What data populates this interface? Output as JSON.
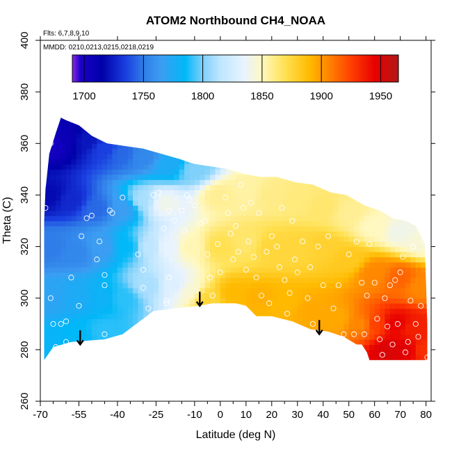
{
  "chart_data": {
    "type": "heatmap",
    "title": "ATOM2 Northbound CH4_NOAA",
    "flights_note": "Flts: 6,7,8,9,10",
    "dates_note": "MMDD: 0210,0213,0215,0218,0219",
    "xlabel": "Latitude (deg N)",
    "ylabel": "Theta (C)",
    "xlim": [
      -70,
      82
    ],
    "ylim": [
      260,
      400
    ],
    "x_ticks": [
      -70,
      -55,
      -40,
      -25,
      -10,
      0,
      10,
      20,
      30,
      40,
      50,
      60,
      70,
      80
    ],
    "x_tick_labels": [
      "-70",
      "-55",
      "-40",
      "-25",
      "-10",
      "0",
      "10",
      "20",
      "30",
      "40",
      "50",
      "60",
      "70",
      "80"
    ],
    "x_minor_ticks": [
      -65,
      -60,
      -50,
      -45,
      -35,
      -30,
      -20,
      -15,
      -5,
      5,
      15,
      25,
      35,
      45,
      55,
      65,
      75
    ],
    "y_ticks": [
      260,
      280,
      300,
      320,
      340,
      360,
      380,
      400
    ],
    "y_tick_labels": [
      "260",
      "280",
      "300",
      "320",
      "340",
      "360",
      "380",
      "400"
    ],
    "colorbar": {
      "range": [
        1690,
        1965
      ],
      "ticks": [
        1700,
        1750,
        1800,
        1850,
        1900,
        1950
      ],
      "tick_labels": [
        "1700",
        "1750",
        "1800",
        "1850",
        "1900",
        "1950"
      ],
      "stops": [
        {
          "v": 1690,
          "c": "#8a2be2"
        },
        {
          "v": 1697,
          "c": "#1a00c8"
        },
        {
          "v": 1715,
          "c": "#0000a8"
        },
        {
          "v": 1735,
          "c": "#1a3fe0"
        },
        {
          "v": 1750,
          "c": "#2f7de8"
        },
        {
          "v": 1765,
          "c": "#3c9df2"
        },
        {
          "v": 1785,
          "c": "#00b8f8"
        },
        {
          "v": 1800,
          "c": "#7fd0fa"
        },
        {
          "v": 1815,
          "c": "#bfe6ff"
        },
        {
          "v": 1835,
          "c": "#e8f3ff"
        },
        {
          "v": 1850,
          "c": "#fff8c0"
        },
        {
          "v": 1870,
          "c": "#ffe050"
        },
        {
          "v": 1890,
          "c": "#ffba00"
        },
        {
          "v": 1905,
          "c": "#ff8800"
        },
        {
          "v": 1925,
          "c": "#ff4000"
        },
        {
          "v": 1945,
          "c": "#e80000"
        },
        {
          "v": 1965,
          "c": "#b01818"
        }
      ]
    },
    "boundary": {
      "lower": [
        [
          -68.5,
          276
        ],
        [
          -65,
          281
        ],
        [
          -58,
          283
        ],
        [
          -45,
          284
        ],
        [
          -38,
          286
        ],
        [
          -30,
          292
        ],
        [
          -26,
          295
        ],
        [
          -18,
          296
        ],
        [
          -8,
          297
        ],
        [
          -3,
          298
        ],
        [
          0,
          298
        ],
        [
          6,
          298
        ],
        [
          10,
          297
        ],
        [
          14,
          293
        ],
        [
          20,
          293
        ],
        [
          28,
          291
        ],
        [
          35,
          288
        ],
        [
          42,
          287
        ],
        [
          48,
          285
        ],
        [
          53,
          282
        ],
        [
          55,
          282
        ],
        [
          57,
          279
        ],
        [
          58,
          276
        ],
        [
          80.5,
          276
        ]
      ],
      "upper": [
        [
          80.5,
          290
        ],
        [
          79.5,
          321
        ],
        [
          78,
          324
        ],
        [
          76,
          328
        ],
        [
          72,
          330
        ],
        [
          67,
          331
        ],
        [
          62,
          334
        ],
        [
          56,
          336
        ],
        [
          49,
          340
        ],
        [
          43,
          341
        ],
        [
          36,
          344
        ],
        [
          29,
          345
        ],
        [
          22,
          347
        ],
        [
          16,
          347
        ],
        [
          10,
          348
        ],
        [
          3,
          350
        ],
        [
          -3,
          351
        ],
        [
          -10,
          352
        ],
        [
          -16,
          354
        ],
        [
          -23,
          356
        ],
        [
          -30,
          358
        ],
        [
          -37,
          359
        ],
        [
          -44,
          360
        ],
        [
          -50,
          363
        ],
        [
          -55,
          367
        ],
        [
          -60,
          369
        ],
        [
          -62,
          370
        ],
        [
          -64,
          364
        ],
        [
          -66.5,
          356
        ],
        [
          -68,
          342
        ],
        [
          -68.5,
          330
        ]
      ]
    },
    "field_anchors": [
      {
        "x": -65,
        "y": 360,
        "v": 1700
      },
      {
        "x": -60,
        "y": 362,
        "v": 1708
      },
      {
        "x": -52,
        "y": 361,
        "v": 1722
      },
      {
        "x": -45,
        "y": 358,
        "v": 1735
      },
      {
        "x": -38,
        "y": 356,
        "v": 1745
      },
      {
        "x": -30,
        "y": 355,
        "v": 1755
      },
      {
        "x": -20,
        "y": 352,
        "v": 1775
      },
      {
        "x": -10,
        "y": 350,
        "v": 1800
      },
      {
        "x": -66,
        "y": 340,
        "v": 1718
      },
      {
        "x": -58,
        "y": 338,
        "v": 1728
      },
      {
        "x": -48,
        "y": 335,
        "v": 1745
      },
      {
        "x": -38,
        "y": 335,
        "v": 1765
      },
      {
        "x": -30,
        "y": 338,
        "v": 1810
      },
      {
        "x": -22,
        "y": 337,
        "v": 1840
      },
      {
        "x": -66,
        "y": 320,
        "v": 1750
      },
      {
        "x": -56,
        "y": 318,
        "v": 1755
      },
      {
        "x": -46,
        "y": 320,
        "v": 1765
      },
      {
        "x": -36,
        "y": 320,
        "v": 1785
      },
      {
        "x": -28,
        "y": 320,
        "v": 1815
      },
      {
        "x": -20,
        "y": 320,
        "v": 1835
      },
      {
        "x": -12,
        "y": 320,
        "v": 1852
      },
      {
        "x": -66,
        "y": 300,
        "v": 1770
      },
      {
        "x": -56,
        "y": 300,
        "v": 1775
      },
      {
        "x": -46,
        "y": 300,
        "v": 1780
      },
      {
        "x": -38,
        "y": 300,
        "v": 1790
      },
      {
        "x": -28,
        "y": 305,
        "v": 1810
      },
      {
        "x": -18,
        "y": 305,
        "v": 1830
      },
      {
        "x": -12,
        "y": 303,
        "v": 1845
      },
      {
        "x": -66,
        "y": 282,
        "v": 1782
      },
      {
        "x": -55,
        "y": 285,
        "v": 1785
      },
      {
        "x": -45,
        "y": 287,
        "v": 1790
      },
      {
        "x": -5,
        "y": 300,
        "v": 1875
      },
      {
        "x": 5,
        "y": 302,
        "v": 1890
      },
      {
        "x": 15,
        "y": 300,
        "v": 1893
      },
      {
        "x": 25,
        "y": 298,
        "v": 1890
      },
      {
        "x": 35,
        "y": 295,
        "v": 1895
      },
      {
        "x": 45,
        "y": 292,
        "v": 1895
      },
      {
        "x": 55,
        "y": 290,
        "v": 1905
      },
      {
        "x": 0,
        "y": 320,
        "v": 1870
      },
      {
        "x": 10,
        "y": 322,
        "v": 1865
      },
      {
        "x": 20,
        "y": 320,
        "v": 1875
      },
      {
        "x": 30,
        "y": 320,
        "v": 1875
      },
      {
        "x": 40,
        "y": 320,
        "v": 1878
      },
      {
        "x": 50,
        "y": 315,
        "v": 1882
      },
      {
        "x": 0,
        "y": 340,
        "v": 1858
      },
      {
        "x": 10,
        "y": 342,
        "v": 1855
      },
      {
        "x": 20,
        "y": 340,
        "v": 1860
      },
      {
        "x": 30,
        "y": 338,
        "v": 1862
      },
      {
        "x": 40,
        "y": 335,
        "v": 1865
      },
      {
        "x": 50,
        "y": 333,
        "v": 1858
      },
      {
        "x": 60,
        "y": 328,
        "v": 1850
      },
      {
        "x": 70,
        "y": 326,
        "v": 1840
      },
      {
        "x": 78,
        "y": 322,
        "v": 1845
      },
      {
        "x": 60,
        "y": 310,
        "v": 1905
      },
      {
        "x": 70,
        "y": 308,
        "v": 1915
      },
      {
        "x": 78,
        "y": 305,
        "v": 1905
      },
      {
        "x": 60,
        "y": 290,
        "v": 1925
      },
      {
        "x": 68,
        "y": 290,
        "v": 1945
      },
      {
        "x": 75,
        "y": 288,
        "v": 1935
      },
      {
        "x": 66,
        "y": 280,
        "v": 1950
      },
      {
        "x": 72,
        "y": 280,
        "v": 1948
      },
      {
        "x": 79,
        "y": 280,
        "v": 1930
      }
    ],
    "observations": [
      [
        -66,
        360
      ],
      [
        -68,
        335
      ],
      [
        -66,
        300
      ],
      [
        -65,
        290
      ],
      [
        -64,
        281
      ],
      [
        -62,
        290
      ],
      [
        -60,
        283
      ],
      [
        -60,
        291
      ],
      [
        -58,
        308
      ],
      [
        -55,
        297
      ],
      [
        -54,
        324
      ],
      [
        -52,
        331
      ],
      [
        -50,
        332
      ],
      [
        -48,
        315
      ],
      [
        -47,
        322
      ],
      [
        -45,
        286
      ],
      [
        -45,
        309
      ],
      [
        -45,
        305
      ],
      [
        -43,
        334
      ],
      [
        -42,
        333
      ],
      [
        -38,
        339
      ],
      [
        -32,
        317
      ],
      [
        -30,
        311
      ],
      [
        -30,
        304
      ],
      [
        -28,
        296
      ],
      [
        -26,
        340
      ],
      [
        -24,
        341
      ],
      [
        -22,
        327
      ],
      [
        -21,
        299
      ],
      [
        -21,
        298
      ],
      [
        -20,
        334
      ],
      [
        -20,
        308
      ],
      [
        -18,
        330
      ],
      [
        -15,
        334
      ],
      [
        -14,
        326
      ],
      [
        -13,
        340
      ],
      [
        -12,
        338
      ],
      [
        -10,
        336
      ],
      [
        -8,
        329
      ],
      [
        -6,
        330
      ],
      [
        -5,
        317
      ],
      [
        -4,
        308
      ],
      [
        -3,
        301
      ],
      [
        -1,
        321
      ],
      [
        0,
        310
      ],
      [
        2,
        339
      ],
      [
        3,
        333
      ],
      [
        4,
        325
      ],
      [
        5,
        315
      ],
      [
        6,
        328
      ],
      [
        7,
        318
      ],
      [
        8,
        344
      ],
      [
        9,
        335
      ],
      [
        10,
        311
      ],
      [
        11,
        322
      ],
      [
        12,
        337
      ],
      [
        13,
        316
      ],
      [
        14,
        308
      ],
      [
        15,
        333
      ],
      [
        16,
        301
      ],
      [
        18,
        318
      ],
      [
        19,
        298
      ],
      [
        20,
        324
      ],
      [
        22,
        320
      ],
      [
        23,
        312
      ],
      [
        24,
        335
      ],
      [
        25,
        307
      ],
      [
        26,
        294
      ],
      [
        27,
        302
      ],
      [
        28,
        330
      ],
      [
        29,
        315
      ],
      [
        30,
        310
      ],
      [
        32,
        322
      ],
      [
        34,
        300
      ],
      [
        35,
        312
      ],
      [
        36,
        290
      ],
      [
        38,
        320
      ],
      [
        40,
        305
      ],
      [
        42,
        324
      ],
      [
        44,
        296
      ],
      [
        46,
        305
      ],
      [
        48,
        286
      ],
      [
        50,
        317
      ],
      [
        52,
        286
      ],
      [
        53,
        322
      ],
      [
        55,
        306
      ],
      [
        56,
        286
      ],
      [
        57,
        301
      ],
      [
        58,
        321
      ],
      [
        60,
        306
      ],
      [
        61,
        292
      ],
      [
        62,
        284
      ],
      [
        63,
        278
      ],
      [
        64,
        300
      ],
      [
        65,
        289
      ],
      [
        66,
        305
      ],
      [
        67,
        282
      ],
      [
        68,
        307
      ],
      [
        69,
        290
      ],
      [
        70,
        310
      ],
      [
        71,
        316
      ],
      [
        72,
        279
      ],
      [
        73,
        283
      ],
      [
        74,
        299
      ],
      [
        75,
        320
      ],
      [
        76,
        290
      ],
      [
        77,
        285
      ],
      [
        78,
        297
      ],
      [
        79,
        322
      ],
      [
        80.5,
        277
      ]
    ],
    "arrows": [
      {
        "x": -54.5,
        "y_top": 287.5,
        "y_bottom": 282
      },
      {
        "x": -8,
        "y_top": 302.5,
        "y_bottom": 297
      },
      {
        "x": 38.5,
        "y_top": 291.5,
        "y_bottom": 286
      }
    ]
  }
}
